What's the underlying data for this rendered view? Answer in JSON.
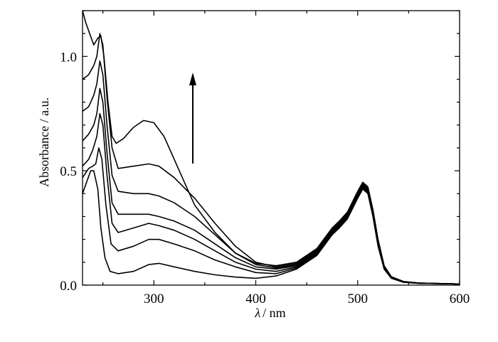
{
  "chart_data": {
    "type": "line",
    "xlabel_symbol": "λ",
    "xlabel_unit": "/ nm",
    "ylabel": "Absorbance / a.u.",
    "xlim": [
      230,
      600
    ],
    "ylim": [
      0.0,
      1.2
    ],
    "x_ticks": [
      "300",
      "400",
      "500",
      "600"
    ],
    "y_ticks": [
      "0.0",
      "0.5",
      "1.0"
    ],
    "grid": false,
    "legend": "none",
    "annotation": "upward arrow indicating absorbance increase",
    "line_color": "#000000",
    "series": [
      {
        "points": [
          [
            230,
            0.4
          ],
          [
            234,
            0.45
          ],
          [
            238,
            0.5
          ],
          [
            241,
            0.5
          ],
          [
            245,
            0.42
          ],
          [
            248,
            0.25
          ],
          [
            252,
            0.12
          ],
          [
            257,
            0.06
          ],
          [
            265,
            0.05
          ],
          [
            280,
            0.06
          ],
          [
            295,
            0.09
          ],
          [
            305,
            0.095
          ],
          [
            320,
            0.08
          ],
          [
            340,
            0.06
          ],
          [
            360,
            0.045
          ],
          [
            380,
            0.035
          ],
          [
            400,
            0.03
          ],
          [
            420,
            0.04
          ],
          [
            440,
            0.07
          ],
          [
            460,
            0.13
          ],
          [
            475,
            0.22
          ],
          [
            482,
            0.25
          ],
          [
            490,
            0.29
          ],
          [
            500,
            0.38
          ],
          [
            505,
            0.42
          ],
          [
            510,
            0.4
          ],
          [
            515,
            0.3
          ],
          [
            520,
            0.17
          ],
          [
            526,
            0.07
          ],
          [
            533,
            0.03
          ],
          [
            545,
            0.012
          ],
          [
            560,
            0.008
          ],
          [
            600,
            0.005
          ]
        ]
      },
      {
        "points": [
          [
            230,
            0.47
          ],
          [
            236,
            0.51
          ],
          [
            240,
            0.52
          ],
          [
            243,
            0.53
          ],
          [
            246,
            0.6
          ],
          [
            249,
            0.55
          ],
          [
            253,
            0.35
          ],
          [
            258,
            0.18
          ],
          [
            265,
            0.15
          ],
          [
            280,
            0.17
          ],
          [
            295,
            0.2
          ],
          [
            305,
            0.2
          ],
          [
            320,
            0.18
          ],
          [
            340,
            0.15
          ],
          [
            360,
            0.11
          ],
          [
            380,
            0.08
          ],
          [
            400,
            0.055
          ],
          [
            420,
            0.05
          ],
          [
            440,
            0.075
          ],
          [
            460,
            0.135
          ],
          [
            475,
            0.225
          ],
          [
            482,
            0.255
          ],
          [
            490,
            0.295
          ],
          [
            500,
            0.385
          ],
          [
            505,
            0.425
          ],
          [
            510,
            0.405
          ],
          [
            515,
            0.305
          ],
          [
            520,
            0.175
          ],
          [
            526,
            0.073
          ],
          [
            533,
            0.032
          ],
          [
            545,
            0.013
          ],
          [
            560,
            0.008
          ],
          [
            600,
            0.005
          ]
        ]
      },
      {
        "points": [
          [
            230,
            0.52
          ],
          [
            236,
            0.55
          ],
          [
            240,
            0.59
          ],
          [
            244,
            0.65
          ],
          [
            247,
            0.75
          ],
          [
            250,
            0.7
          ],
          [
            254,
            0.48
          ],
          [
            259,
            0.27
          ],
          [
            265,
            0.23
          ],
          [
            280,
            0.25
          ],
          [
            295,
            0.27
          ],
          [
            305,
            0.26
          ],
          [
            320,
            0.24
          ],
          [
            340,
            0.2
          ],
          [
            360,
            0.15
          ],
          [
            380,
            0.1
          ],
          [
            400,
            0.07
          ],
          [
            420,
            0.06
          ],
          [
            440,
            0.08
          ],
          [
            460,
            0.14
          ],
          [
            475,
            0.23
          ],
          [
            482,
            0.26
          ],
          [
            490,
            0.3
          ],
          [
            500,
            0.39
          ],
          [
            505,
            0.43
          ],
          [
            510,
            0.41
          ],
          [
            515,
            0.31
          ],
          [
            520,
            0.18
          ],
          [
            526,
            0.075
          ],
          [
            533,
            0.033
          ],
          [
            545,
            0.013
          ],
          [
            560,
            0.008
          ],
          [
            600,
            0.005
          ]
        ]
      },
      {
        "points": [
          [
            230,
            0.63
          ],
          [
            236,
            0.66
          ],
          [
            241,
            0.7
          ],
          [
            244,
            0.75
          ],
          [
            247,
            0.86
          ],
          [
            250,
            0.8
          ],
          [
            254,
            0.58
          ],
          [
            259,
            0.36
          ],
          [
            265,
            0.31
          ],
          [
            280,
            0.31
          ],
          [
            295,
            0.31
          ],
          [
            305,
            0.3
          ],
          [
            320,
            0.28
          ],
          [
            340,
            0.24
          ],
          [
            360,
            0.18
          ],
          [
            380,
            0.12
          ],
          [
            400,
            0.08
          ],
          [
            420,
            0.07
          ],
          [
            440,
            0.085
          ],
          [
            460,
            0.145
          ],
          [
            475,
            0.235
          ],
          [
            482,
            0.265
          ],
          [
            490,
            0.305
          ],
          [
            500,
            0.395
          ],
          [
            505,
            0.435
          ],
          [
            510,
            0.415
          ],
          [
            515,
            0.315
          ],
          [
            520,
            0.185
          ],
          [
            526,
            0.078
          ],
          [
            533,
            0.034
          ],
          [
            545,
            0.014
          ],
          [
            560,
            0.009
          ],
          [
            600,
            0.005
          ]
        ]
      },
      {
        "points": [
          [
            230,
            0.76
          ],
          [
            236,
            0.78
          ],
          [
            241,
            0.83
          ],
          [
            244,
            0.88
          ],
          [
            247,
            0.98
          ],
          [
            250,
            0.92
          ],
          [
            254,
            0.7
          ],
          [
            259,
            0.48
          ],
          [
            265,
            0.41
          ],
          [
            280,
            0.4
          ],
          [
            295,
            0.4
          ],
          [
            305,
            0.39
          ],
          [
            320,
            0.36
          ],
          [
            340,
            0.3
          ],
          [
            360,
            0.22
          ],
          [
            380,
            0.14
          ],
          [
            400,
            0.09
          ],
          [
            420,
            0.075
          ],
          [
            440,
            0.09
          ],
          [
            460,
            0.15
          ],
          [
            475,
            0.24
          ],
          [
            482,
            0.27
          ],
          [
            490,
            0.31
          ],
          [
            500,
            0.4
          ],
          [
            505,
            0.44
          ],
          [
            510,
            0.42
          ],
          [
            515,
            0.32
          ],
          [
            520,
            0.19
          ],
          [
            526,
            0.08
          ],
          [
            533,
            0.035
          ],
          [
            545,
            0.015
          ],
          [
            560,
            0.009
          ],
          [
            600,
            0.005
          ]
        ]
      },
      {
        "points": [
          [
            230,
            0.9
          ],
          [
            236,
            0.92
          ],
          [
            241,
            0.96
          ],
          [
            244,
            1.0
          ],
          [
            247,
            1.1
          ],
          [
            250,
            1.05
          ],
          [
            254,
            0.82
          ],
          [
            259,
            0.6
          ],
          [
            265,
            0.51
          ],
          [
            280,
            0.52
          ],
          [
            295,
            0.53
          ],
          [
            305,
            0.52
          ],
          [
            320,
            0.47
          ],
          [
            340,
            0.38
          ],
          [
            360,
            0.27
          ],
          [
            380,
            0.17
          ],
          [
            400,
            0.1
          ],
          [
            420,
            0.08
          ],
          [
            440,
            0.095
          ],
          [
            460,
            0.155
          ],
          [
            475,
            0.245
          ],
          [
            482,
            0.275
          ],
          [
            490,
            0.315
          ],
          [
            500,
            0.405
          ],
          [
            505,
            0.445
          ],
          [
            510,
            0.425
          ],
          [
            515,
            0.325
          ],
          [
            520,
            0.195
          ],
          [
            526,
            0.082
          ],
          [
            533,
            0.036
          ],
          [
            545,
            0.015
          ],
          [
            560,
            0.009
          ],
          [
            600,
            0.005
          ]
        ]
      },
      {
        "points": [
          [
            230,
            1.2
          ],
          [
            233,
            1.15
          ],
          [
            237,
            1.1
          ],
          [
            241,
            1.05
          ],
          [
            245,
            1.08
          ],
          [
            248,
            1.09
          ],
          [
            251,
            1.0
          ],
          [
            255,
            0.8
          ],
          [
            259,
            0.65
          ],
          [
            263,
            0.62
          ],
          [
            270,
            0.64
          ],
          [
            280,
            0.69
          ],
          [
            290,
            0.72
          ],
          [
            300,
            0.71
          ],
          [
            310,
            0.65
          ],
          [
            320,
            0.55
          ],
          [
            330,
            0.45
          ],
          [
            340,
            0.35
          ],
          [
            360,
            0.23
          ],
          [
            380,
            0.14
          ],
          [
            400,
            0.095
          ],
          [
            420,
            0.085
          ],
          [
            440,
            0.1
          ],
          [
            460,
            0.16
          ],
          [
            475,
            0.25
          ],
          [
            482,
            0.28
          ],
          [
            490,
            0.32
          ],
          [
            500,
            0.41
          ],
          [
            505,
            0.45
          ],
          [
            510,
            0.43
          ],
          [
            515,
            0.33
          ],
          [
            520,
            0.2
          ],
          [
            526,
            0.085
          ],
          [
            533,
            0.037
          ],
          [
            545,
            0.016
          ],
          [
            560,
            0.009
          ],
          [
            600,
            0.005
          ]
        ]
      }
    ]
  }
}
